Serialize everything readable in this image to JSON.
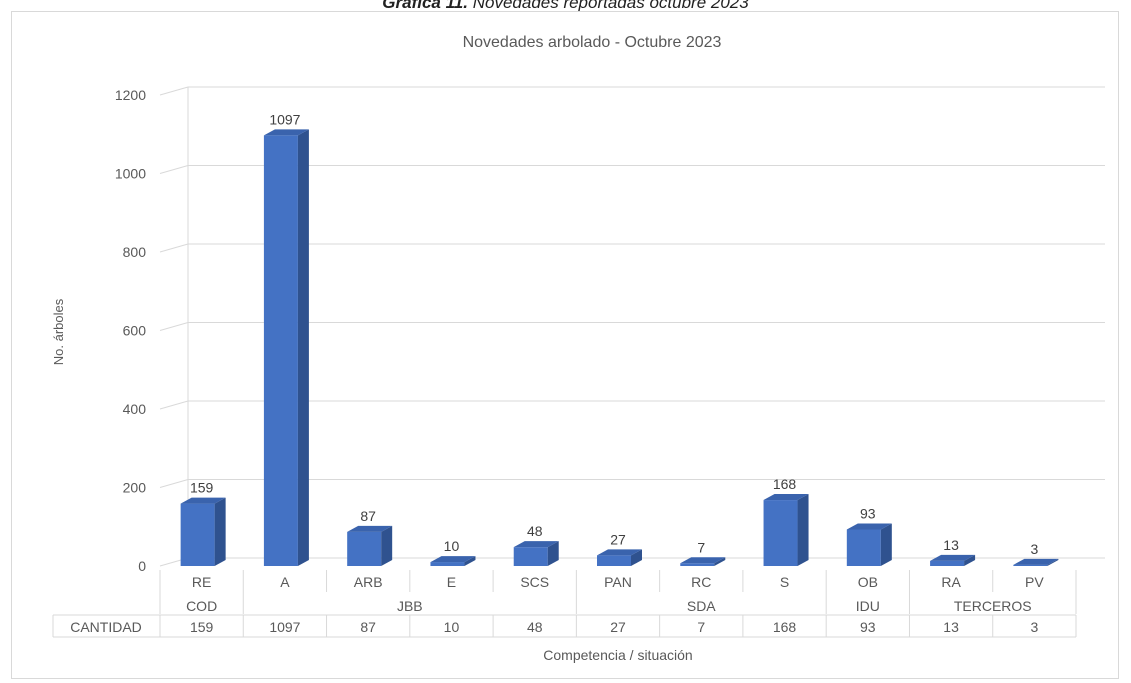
{
  "caption": {
    "prefix": "Gráfica 11.",
    "text": "Novedades reportadas octubre 2023"
  },
  "chart_data": {
    "type": "bar",
    "title": "Novedades arbolado - Octubre 2023",
    "xlabel": "Competencia / situación",
    "ylabel": "No. árboles",
    "ylim": [
      0,
      1200
    ],
    "yticks": [
      0,
      200,
      400,
      600,
      800,
      1000,
      1200
    ],
    "grid": true,
    "categories": [
      "RE",
      "A",
      "ARB",
      "E",
      "SCS",
      "PAN",
      "RC",
      "S",
      "OB",
      "RA",
      "PV"
    ],
    "values": [
      159,
      1097,
      87,
      10,
      48,
      27,
      7,
      168,
      93,
      13,
      3
    ],
    "groups": [
      {
        "label": "COD",
        "categories": [
          "RE"
        ]
      },
      {
        "label": "JBB",
        "categories": [
          "A",
          "ARB",
          "E",
          "SCS"
        ]
      },
      {
        "label": "SDA",
        "categories": [
          "PAN",
          "RC",
          "S"
        ]
      },
      {
        "label": "IDU",
        "categories": [
          "OB"
        ]
      },
      {
        "label": "TERCEROS",
        "categories": [
          "RA",
          "PV"
        ]
      }
    ],
    "table_row_label": "CANTIDAD",
    "bar_color": "#4472c4",
    "bar_side_color": "#2f528f",
    "bar_top_color": "#3a63ad"
  }
}
